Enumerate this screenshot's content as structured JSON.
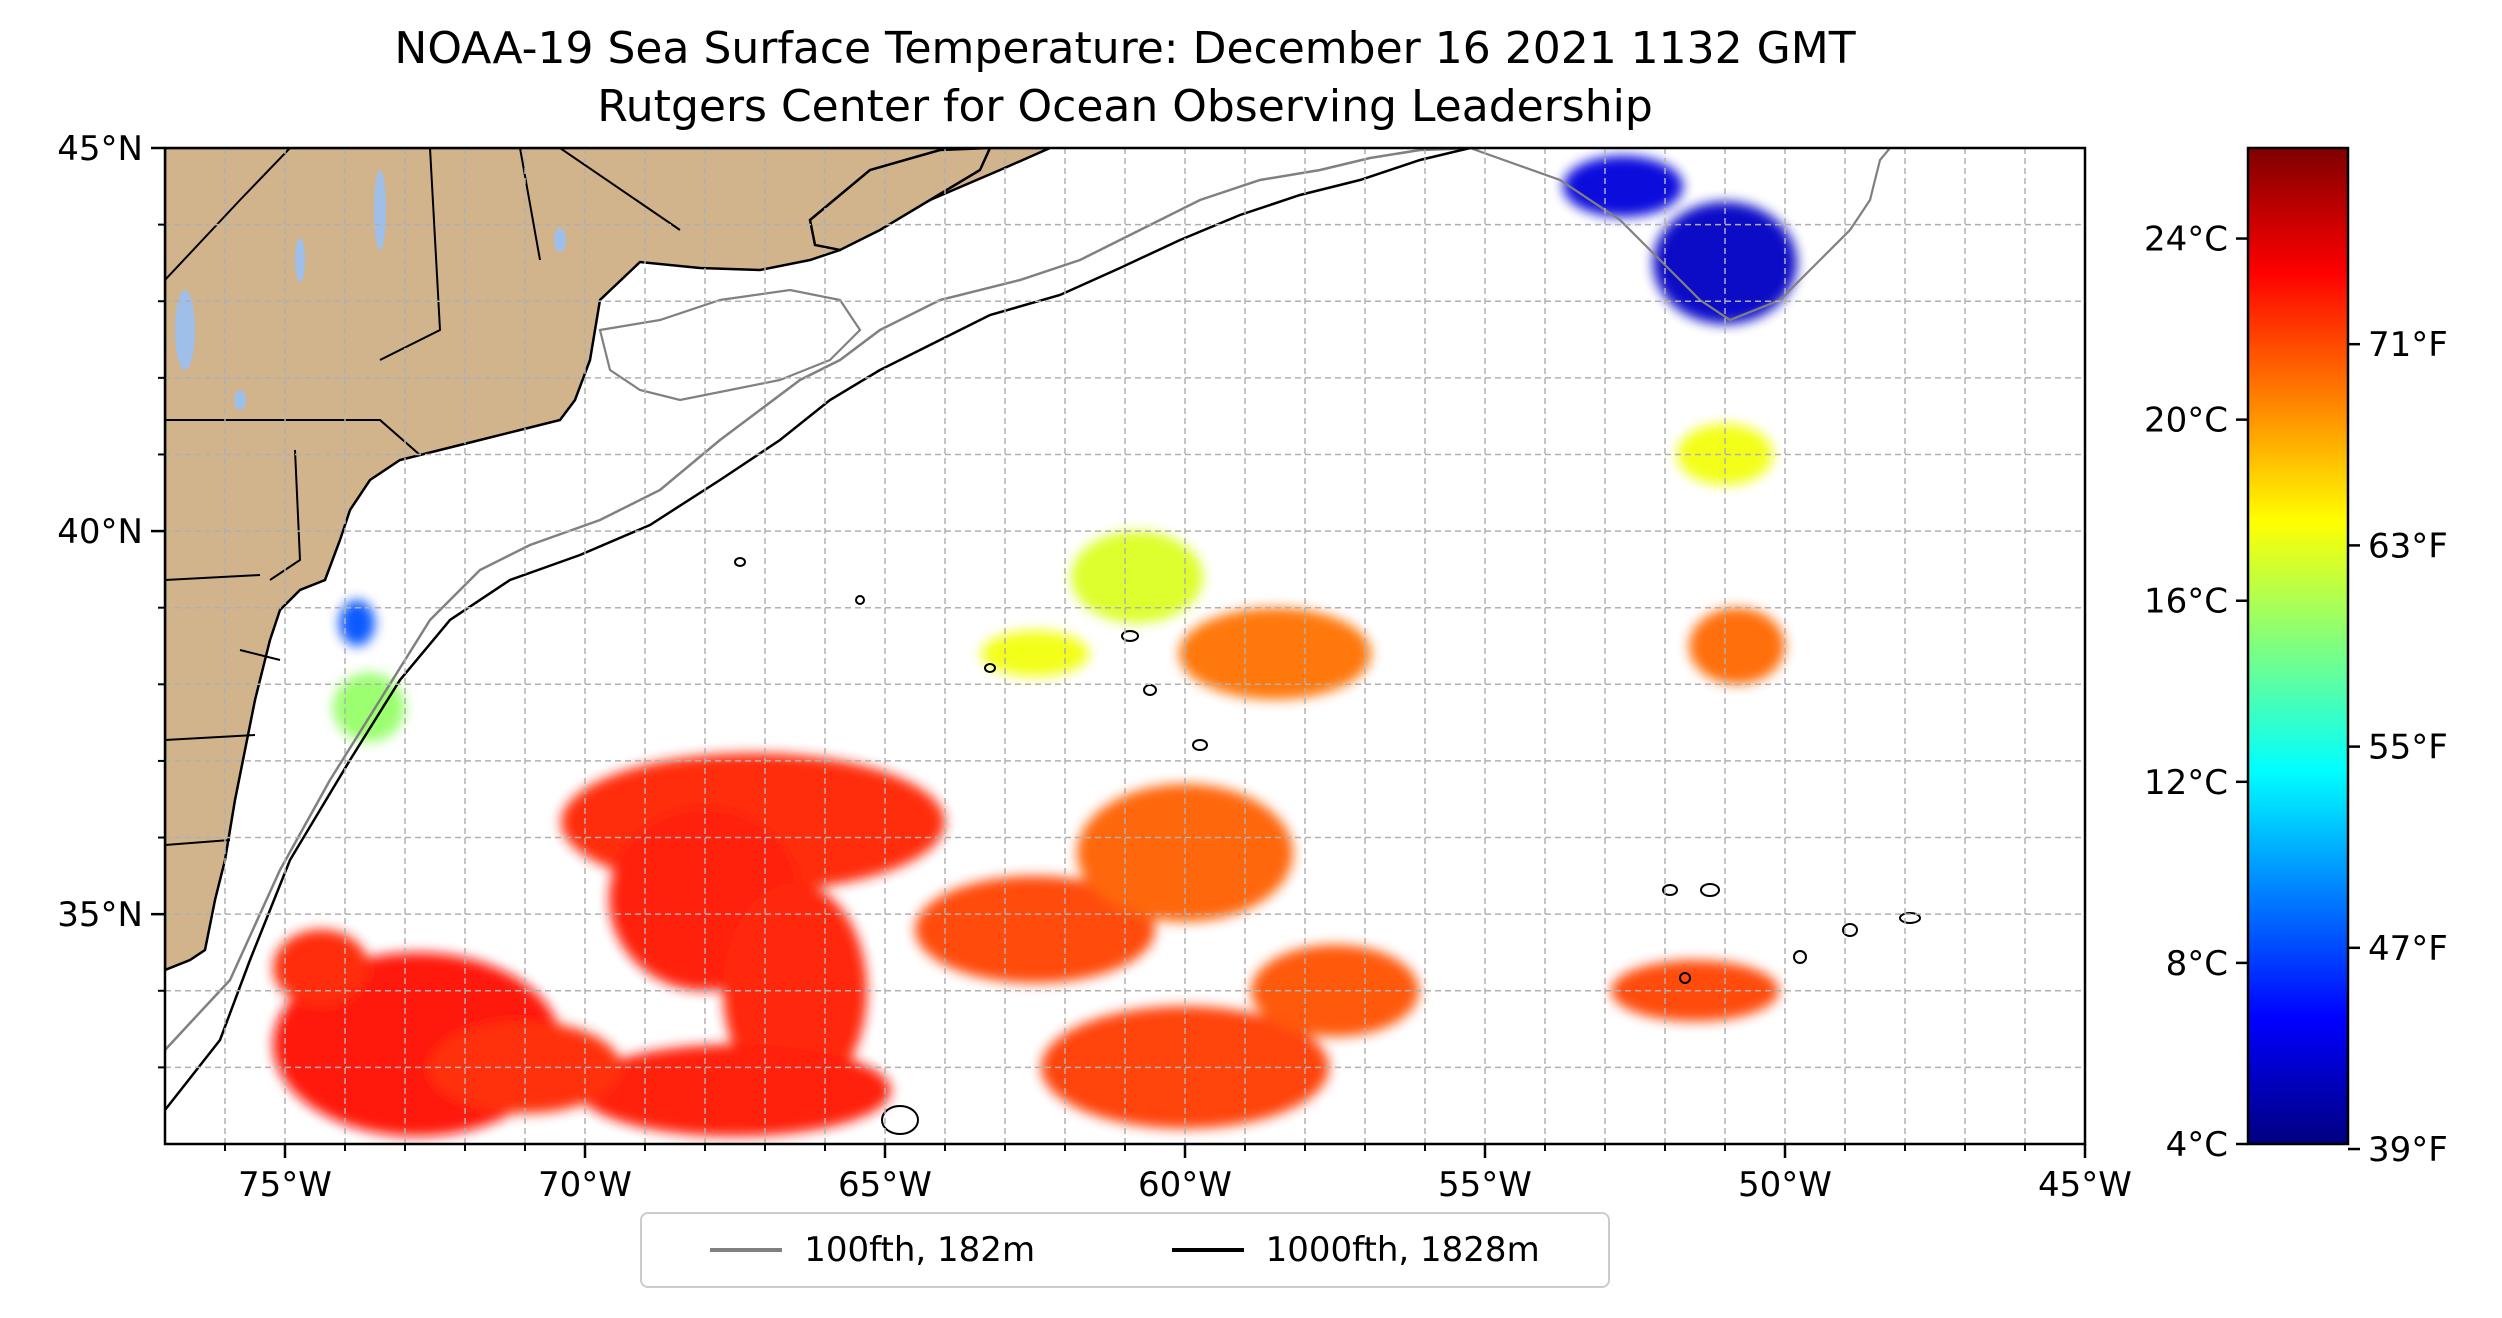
{
  "title": "NOAA-19 Sea Surface Temperature: December 16 2021 1132 GMT",
  "subtitle": "Rutgers Center for Ocean Observing Leadership",
  "map": {
    "lon_range": [
      -77,
      -45
    ],
    "lat_range": [
      32,
      45
    ],
    "lon_ticks": [
      {
        "value": -75,
        "label": "75°W"
      },
      {
        "value": -70,
        "label": "70°W"
      },
      {
        "value": -65,
        "label": "65°W"
      },
      {
        "value": -60,
        "label": "60°W"
      },
      {
        "value": -55,
        "label": "55°W"
      },
      {
        "value": -50,
        "label": "50°W"
      },
      {
        "value": -45,
        "label": "45°W"
      }
    ],
    "lat_ticks": [
      {
        "value": 45,
        "label": "45°N"
      },
      {
        "value": 40,
        "label": "40°N"
      },
      {
        "value": 35,
        "label": "35°N"
      }
    ],
    "gridlines": "dashed",
    "land_color": "#d2b48c",
    "lake_color": "#9fbfe8",
    "ocean_color": "#ffffff"
  },
  "colorbar": {
    "celsius_ticks": [
      {
        "value": 24,
        "label": "24°C"
      },
      {
        "value": 20,
        "label": "20°C"
      },
      {
        "value": 16,
        "label": "16°C"
      },
      {
        "value": 12,
        "label": "12°C"
      },
      {
        "value": 8,
        "label": "8°C"
      },
      {
        "value": 4,
        "label": "4°C"
      }
    ],
    "fahrenheit_ticks": [
      {
        "value": 71,
        "label": "71°F"
      },
      {
        "value": 63,
        "label": "63°F"
      },
      {
        "value": 55,
        "label": "55°F"
      },
      {
        "value": 47,
        "label": "47°F"
      },
      {
        "value": 39,
        "label": "39°F"
      }
    ],
    "range_c": [
      4,
      26
    ],
    "colormap": "jet",
    "colors": [
      "#00007f",
      "#0000ff",
      "#007fff",
      "#00ffff",
      "#7fff7f",
      "#ffff00",
      "#ff7f00",
      "#ff0000",
      "#7f0000"
    ]
  },
  "legend": {
    "items": [
      {
        "label": "100fth, 182m",
        "color": "#808080"
      },
      {
        "label": "1000fth, 1828m",
        "color": "#000000"
      }
    ]
  },
  "sst_patches": [
    {
      "lon": -67.2,
      "lat": 36.2,
      "temp_c": 22.5,
      "rx": 3.2,
      "ry": 0.9
    },
    {
      "lon": -68.0,
      "lat": 35.2,
      "temp_c": 22.8,
      "rx": 1.6,
      "ry": 1.2
    },
    {
      "lon": -66.5,
      "lat": 34.0,
      "temp_c": 22.6,
      "rx": 1.2,
      "ry": 1.4
    },
    {
      "lon": -67.5,
      "lat": 32.7,
      "temp_c": 22.7,
      "rx": 2.6,
      "ry": 0.6
    },
    {
      "lon": -72.8,
      "lat": 33.3,
      "temp_c": 22.9,
      "rx": 2.4,
      "ry": 1.2
    },
    {
      "lon": -74.4,
      "lat": 34.3,
      "temp_c": 22.5,
      "rx": 0.8,
      "ry": 0.5
    },
    {
      "lon": -71.0,
      "lat": 33.0,
      "temp_c": 22.4,
      "rx": 1.6,
      "ry": 0.6
    },
    {
      "lon": -62.5,
      "lat": 34.8,
      "temp_c": 21.8,
      "rx": 2.0,
      "ry": 0.7
    },
    {
      "lon": -60.0,
      "lat": 35.8,
      "temp_c": 21.2,
      "rx": 1.8,
      "ry": 0.9
    },
    {
      "lon": -60.0,
      "lat": 33.0,
      "temp_c": 22.0,
      "rx": 2.4,
      "ry": 0.8
    },
    {
      "lon": -57.5,
      "lat": 34.0,
      "temp_c": 21.5,
      "rx": 1.4,
      "ry": 0.6
    },
    {
      "lon": -58.5,
      "lat": 38.4,
      "temp_c": 20.8,
      "rx": 1.6,
      "ry": 0.6
    },
    {
      "lon": -51.5,
      "lat": 34.0,
      "temp_c": 21.8,
      "rx": 1.4,
      "ry": 0.4
    },
    {
      "lon": -50.8,
      "lat": 38.5,
      "temp_c": 21.0,
      "rx": 0.8,
      "ry": 0.5
    },
    {
      "lon": -60.8,
      "lat": 39.4,
      "temp_c": 17.0,
      "rx": 1.1,
      "ry": 0.6
    },
    {
      "lon": -62.5,
      "lat": 38.4,
      "temp_c": 17.5,
      "rx": 0.9,
      "ry": 0.3
    },
    {
      "lon": -73.6,
      "lat": 37.7,
      "temp_c": 15.5,
      "rx": 0.6,
      "ry": 0.45
    },
    {
      "lon": -73.8,
      "lat": 38.8,
      "temp_c": 8.5,
      "rx": 0.3,
      "ry": 0.3
    },
    {
      "lon": -51.0,
      "lat": 43.5,
      "temp_c": 5.5,
      "rx": 1.2,
      "ry": 0.8
    },
    {
      "lon": -52.7,
      "lat": 44.5,
      "temp_c": 6.0,
      "rx": 1.0,
      "ry": 0.4
    },
    {
      "lon": -51.0,
      "lat": 41.0,
      "temp_c": 17.5,
      "rx": 0.8,
      "ry": 0.4
    }
  ]
}
